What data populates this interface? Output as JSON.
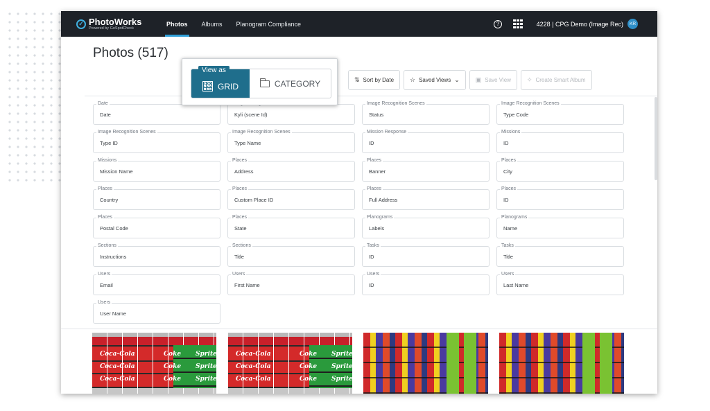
{
  "app": {
    "name": "PhotoWorks",
    "tagline": "Powered by GoSpotCheck",
    "account": "4228 | CPG Demo (Image Rec)",
    "avatar_initials": "KR"
  },
  "nav": [
    {
      "label": "Photos",
      "active": true
    },
    {
      "label": "Albums",
      "active": false
    },
    {
      "label": "Planogram Compliance",
      "active": false
    }
  ],
  "page": {
    "title": "Photos (517)"
  },
  "view_toggle": {
    "label": "View as",
    "grid_label": "GRID",
    "category_label": "CATEGORY",
    "selected": "GRID"
  },
  "toolbar": {
    "sort_label": "Sort by Date",
    "saved_views_label": "Saved Views",
    "save_view_label": "Save View",
    "create_album_label": "Create Smart Album"
  },
  "filters": [
    {
      "group": "Date",
      "field": "Date"
    },
    {
      "group": "Image Recognition Scenes",
      "field": "Kyli (scene Id)"
    },
    {
      "group": "Image Recognition Scenes",
      "field": "Status"
    },
    {
      "group": "Image Recognition Scenes",
      "field": "Type Code"
    },
    {
      "group": "Image Recognition Scenes",
      "field": "Type ID"
    },
    {
      "group": "Image Recognition Scenes",
      "field": "Type Name"
    },
    {
      "group": "Mission Response",
      "field": "ID"
    },
    {
      "group": "Missions",
      "field": "ID"
    },
    {
      "group": "Missions",
      "field": "Mission Name"
    },
    {
      "group": "Places",
      "field": "Address"
    },
    {
      "group": "Places",
      "field": "Banner"
    },
    {
      "group": "Places",
      "field": "City"
    },
    {
      "group": "Places",
      "field": "Country"
    },
    {
      "group": "Places",
      "field": "Custom Place ID"
    },
    {
      "group": "Places",
      "field": "Full Address"
    },
    {
      "group": "Places",
      "field": "ID"
    },
    {
      "group": "Places",
      "field": "Postal Code"
    },
    {
      "group": "Places",
      "field": "State"
    },
    {
      "group": "Planograms",
      "field": "Labels"
    },
    {
      "group": "Planograms",
      "field": "Name"
    },
    {
      "group": "Sections",
      "field": "Instructions"
    },
    {
      "group": "Sections",
      "field": "Title"
    },
    {
      "group": "Tasks",
      "field": "ID"
    },
    {
      "group": "Tasks",
      "field": "Title"
    },
    {
      "group": "Users",
      "field": "Email"
    },
    {
      "group": "Users",
      "field": "First Name"
    },
    {
      "group": "Users",
      "field": "ID"
    },
    {
      "group": "Users",
      "field": "Last Name"
    },
    {
      "group": "Users",
      "field": "User Name"
    }
  ],
  "photos": [
    {
      "kind": "cola",
      "brands": [
        "Coca-Cola",
        "Coke",
        "Sprite"
      ]
    },
    {
      "kind": "cola",
      "brands": [
        "Coca-Cola",
        "Coke",
        "Sprite"
      ]
    },
    {
      "kind": "candy",
      "brands": []
    },
    {
      "kind": "candy",
      "brands": []
    }
  ],
  "colors": {
    "topbar": "#1e2228",
    "accent": "#2f9fd8",
    "toggle_active": "#1f6e8c"
  }
}
